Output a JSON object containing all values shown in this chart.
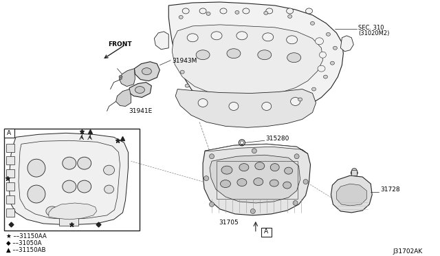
{
  "background_color": "#ffffff",
  "diagram_id": "J31702AK",
  "labels": {
    "front_arrow": "FRONT",
    "part_31943M": "31943M",
    "part_31941E": "31941E",
    "part_sec310_line1": "SEC. 310",
    "part_sec310_line2": "(31020M2)",
    "part_315280": "315280",
    "part_31705": "31705",
    "part_31728": "31728",
    "legend_star": "★ ––31150AA",
    "legend_diamond": "◆ ––31050A",
    "legend_triangle": "▲ ––31150AB",
    "box_A": "A"
  },
  "line_color": "#222222",
  "gray_fill": "#e8e8e8",
  "light_fill": "#f2f2f2"
}
